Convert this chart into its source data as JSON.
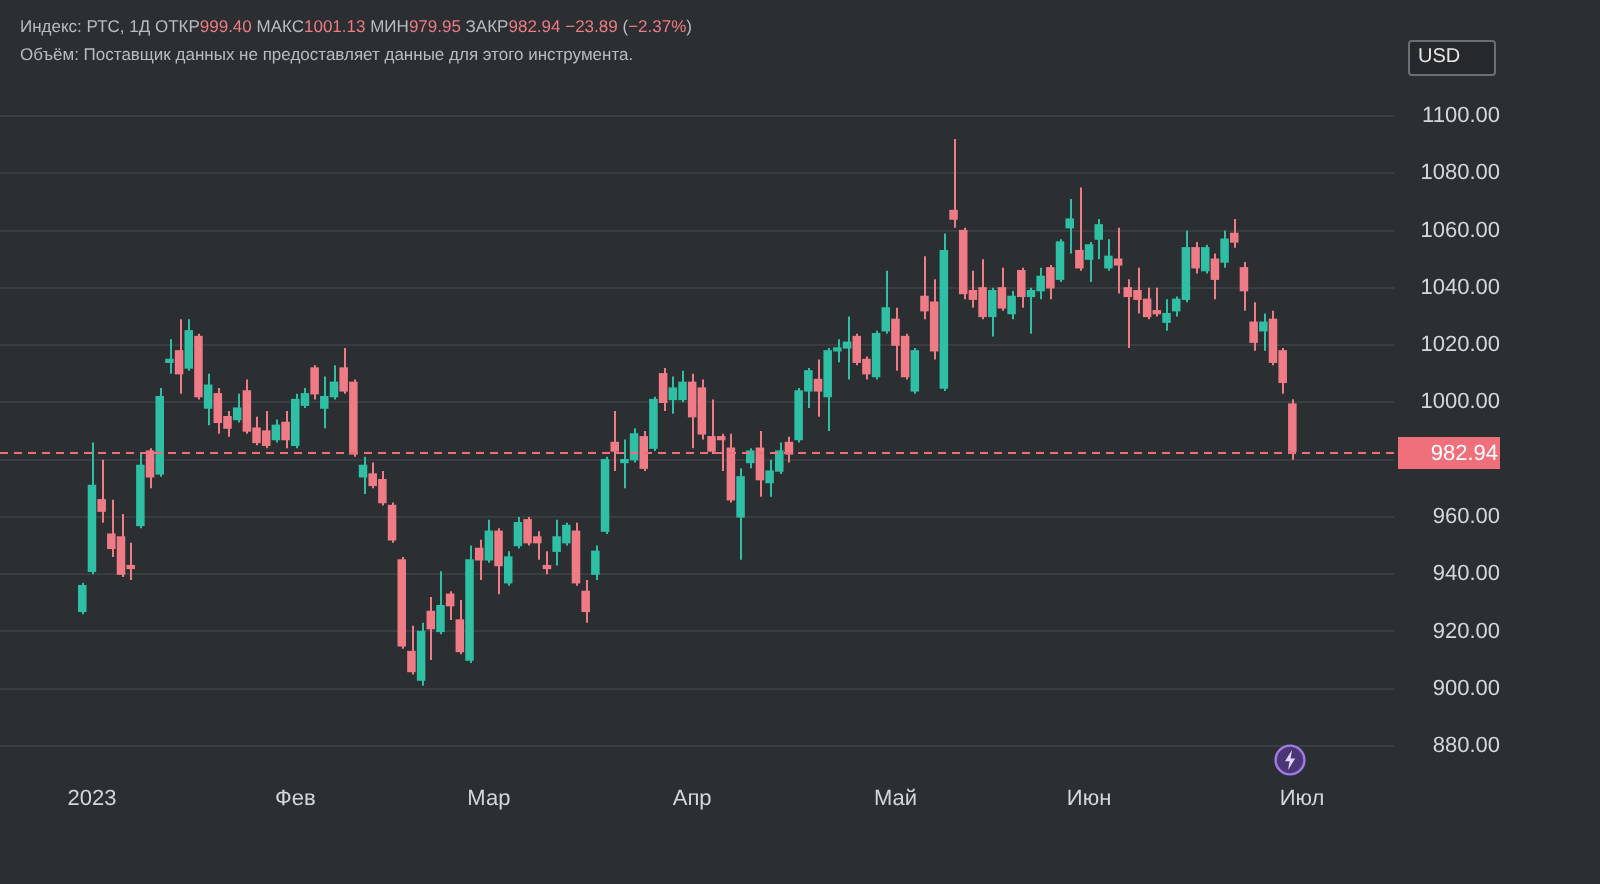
{
  "chart_data": {
    "type": "candlestick",
    "title": "Индекс: РТС, 1Д ОТКР999.40 МАКС1001.13 МИН979.95 ЗАКР982.94 −23.89 (−2.37%)",
    "annotations": [
      "Объём: Поставщик данных не предоставляет данные для этого инструмента.",
      "USD"
    ],
    "categories": [
      null,
      null,
      null,
      null,
      null,
      null,
      null,
      null,
      null,
      "2023",
      null,
      null,
      null,
      null,
      null,
      null,
      null,
      null,
      null,
      null,
      null,
      null,
      null,
      null,
      null,
      null,
      null,
      null,
      null,
      null,
      "Фев",
      null,
      null,
      null,
      null,
      null,
      null,
      null,
      null,
      null,
      null,
      null,
      null,
      null,
      null,
      null,
      null,
      null,
      null,
      null,
      "Мар",
      null,
      null,
      null,
      null,
      null,
      null,
      null,
      null,
      null,
      null,
      null,
      null,
      null,
      null,
      null,
      null,
      null,
      null,
      null,
      null,
      "Апр",
      null,
      null,
      null,
      null,
      null,
      null,
      null,
      null,
      null,
      null,
      null,
      null,
      null,
      null,
      null,
      null,
      null,
      null,
      null,
      null,
      "Май",
      null,
      null,
      null,
      null,
      null,
      null,
      null,
      null,
      null,
      null,
      null,
      null,
      null,
      null,
      null,
      null,
      null,
      null,
      null,
      "Июн",
      null,
      null,
      null,
      null,
      null,
      null,
      null,
      null,
      null,
      null,
      null,
      null,
      null,
      null,
      null,
      null,
      null,
      null,
      null,
      null,
      null,
      "Июл",
      null,
      null,
      null,
      null,
      null,
      null,
      null,
      null,
      null
    ],
    "ohlc": [
      null,
      null,
      null,
      null,
      null,
      null,
      null,
      null,
      [
        927,
        937,
        926,
        936
      ],
      [
        941,
        986,
        940,
        971
      ],
      [
        966,
        980,
        958,
        962
      ],
      [
        954,
        966,
        946,
        949
      ],
      [
        953,
        961,
        939,
        940
      ],
      [
        943,
        951,
        938,
        942
      ],
      [
        957,
        982,
        956,
        978
      ],
      [
        983,
        984,
        970,
        974
      ],
      [
        975,
        1005,
        974,
        1002
      ],
      [
        1014,
        1022,
        1010,
        1015
      ],
      [
        1018,
        1029,
        1003,
        1010
      ],
      [
        1012,
        1029,
        1011,
        1025
      ],
      [
        1023,
        1024,
        1001,
        1002
      ],
      [
        998,
        1010,
        992,
        1006
      ],
      [
        1003,
        1005,
        989,
        993
      ],
      [
        995,
        997,
        988,
        991
      ],
      [
        994,
        1003,
        993,
        998
      ],
      [
        1004,
        1008,
        989,
        990
      ],
      [
        991,
        995,
        985,
        986
      ],
      [
        990,
        997,
        984,
        985
      ],
      [
        987,
        994,
        986,
        992
      ],
      [
        993,
        997,
        984,
        987
      ],
      [
        985,
        1003,
        984,
        1001
      ],
      [
        999,
        1005,
        998,
        1003
      ],
      [
        1012,
        1013,
        1001,
        1003
      ],
      [
        998,
        1009,
        991,
        1002
      ],
      [
        1002,
        1013,
        1001,
        1007
      ],
      [
        1012,
        1019,
        1003,
        1004
      ],
      [
        1007,
        1008,
        981,
        982
      ],
      [
        974,
        981,
        968,
        978
      ],
      [
        975,
        979,
        970,
        971
      ],
      [
        973,
        976,
        964,
        965
      ],
      [
        964,
        965,
        951,
        952
      ],
      [
        945,
        946,
        914,
        915
      ],
      [
        913,
        922,
        905,
        906
      ],
      [
        903,
        923,
        901,
        920
      ],
      [
        927,
        932,
        910,
        921
      ],
      [
        920,
        941,
        919,
        929
      ],
      [
        933,
        934,
        924,
        929
      ],
      [
        924,
        931,
        912,
        913
      ],
      [
        910,
        950,
        909,
        945
      ],
      [
        949,
        952,
        938,
        945
      ],
      [
        945,
        959,
        944,
        955
      ],
      [
        955,
        956,
        933,
        943
      ],
      [
        937,
        948,
        936,
        946
      ],
      [
        950,
        960,
        949,
        958
      ],
      [
        959,
        960,
        950,
        951
      ],
      [
        953,
        955,
        945,
        951
      ],
      [
        943,
        948,
        940,
        942
      ],
      [
        948,
        959,
        943,
        953
      ],
      [
        951,
        958,
        950,
        957
      ],
      [
        955,
        958,
        936,
        937
      ],
      [
        934,
        938,
        923,
        927
      ],
      [
        940,
        950,
        938,
        948
      ],
      [
        955,
        981,
        954,
        980
      ],
      [
        986,
        997,
        976,
        983
      ],
      [
        979,
        987,
        970,
        980
      ],
      [
        980,
        991,
        979,
        989
      ],
      [
        988,
        990,
        976,
        977
      ],
      [
        984,
        1002,
        983,
        1001
      ],
      [
        1010,
        1012,
        997,
        1000
      ],
      [
        1001,
        1009,
        996,
        1005
      ],
      [
        1001,
        1011,
        1000,
        1007
      ],
      [
        1007,
        1010,
        984,
        995
      ],
      [
        1005,
        1008,
        987,
        989
      ],
      [
        988,
        1001,
        982,
        983
      ],
      [
        988,
        989,
        976,
        987
      ],
      [
        984,
        989,
        965,
        966
      ],
      [
        960,
        977,
        945,
        974
      ],
      [
        979,
        984,
        977,
        983
      ],
      [
        984,
        990,
        967,
        973
      ],
      [
        972,
        980,
        967,
        976
      ],
      [
        976,
        986,
        975,
        983
      ],
      [
        986,
        988,
        979,
        982
      ],
      [
        987,
        1005,
        986,
        1004
      ],
      [
        1004,
        1012,
        998,
        1011
      ],
      [
        1008,
        1015,
        995,
        1004
      ],
      [
        1002,
        1019,
        990,
        1018
      ],
      [
        1018,
        1022,
        1014,
        1019
      ],
      [
        1019,
        1030,
        1008,
        1021
      ],
      [
        1023,
        1024,
        1013,
        1014
      ],
      [
        1015,
        1016,
        1008,
        1010
      ],
      [
        1009,
        1025,
        1008,
        1024
      ],
      [
        1025,
        1046,
        1024,
        1033
      ],
      [
        1029,
        1033,
        1011,
        1020
      ],
      [
        1023,
        1024,
        1008,
        1009
      ],
      [
        1004,
        1019,
        1003,
        1018
      ],
      [
        1037,
        1051,
        1029,
        1032
      ],
      [
        1035,
        1043,
        1015,
        1018
      ],
      [
        1005,
        1059,
        1004,
        1053
      ],
      [
        1067,
        1092,
        1061,
        1064
      ],
      [
        1060,
        1061,
        1036,
        1038
      ],
      [
        1039,
        1046,
        1033,
        1036
      ],
      [
        1040,
        1050,
        1029,
        1030
      ],
      [
        1030,
        1040,
        1023,
        1039
      ],
      [
        1040,
        1047,
        1032,
        1033
      ],
      [
        1031,
        1039,
        1029,
        1037
      ],
      [
        1046,
        1047,
        1033,
        1037
      ],
      [
        1037,
        1040,
        1024,
        1039
      ],
      [
        1039,
        1047,
        1036,
        1044
      ],
      [
        1047,
        1048,
        1036,
        1040
      ],
      [
        1043,
        1057,
        1042,
        1056
      ],
      [
        1061,
        1071,
        1052,
        1064
      ],
      [
        1053,
        1075,
        1046,
        1047
      ],
      [
        1050,
        1056,
        1042,
        1055
      ],
      [
        1057,
        1064,
        1050,
        1062
      ],
      [
        1047,
        1057,
        1046,
        1051
      ],
      [
        1050,
        1061,
        1038,
        1048
      ],
      [
        1040,
        1043,
        1019,
        1037
      ],
      [
        1039,
        1047,
        1031,
        1036
      ],
      [
        1036,
        1040,
        1029,
        1030
      ],
      [
        1032,
        1040,
        1030,
        1031
      ],
      [
        1028,
        1036,
        1025,
        1031
      ],
      [
        1032,
        1037,
        1030,
        1036
      ],
      [
        1036,
        1060,
        1035,
        1054
      ],
      [
        1054,
        1056,
        1045,
        1047
      ],
      [
        1046,
        1055,
        1045,
        1054
      ],
      [
        1050,
        1052,
        1036,
        1043
      ],
      [
        1049,
        1060,
        1047,
        1057
      ],
      [
        1059,
        1064,
        1054,
        1056
      ],
      [
        1047,
        1049,
        1032,
        1039
      ],
      [
        1028,
        1035,
        1018,
        1021
      ],
      [
        1025,
        1031,
        1018,
        1028
      ],
      [
        1029,
        1032,
        1013,
        1014
      ],
      [
        1018,
        1019,
        1003,
        1007
      ],
      [
        999.4,
        1001.13,
        979.95,
        982.94
      ],
      null,
      null,
      null,
      null,
      null,
      null,
      null,
      null,
      null,
      null
    ],
    "colors": [
      null,
      null,
      null,
      null,
      null,
      null,
      null,
      null,
      "#2ebfa5",
      "#2ebfa5",
      "#ef7b86",
      "#ef7b86",
      "#ef7b86",
      "#ef7b86",
      "#2ebfa5",
      "#ef7b86",
      "#2ebfa5",
      "#2ebfa5",
      "#ef7b86",
      "#2ebfa5",
      "#ef7b86",
      "#2ebfa5",
      "#ef7b86",
      "#ef7b86",
      "#2ebfa5",
      "#ef7b86",
      "#ef7b86",
      "#ef7b86",
      "#2ebfa5",
      "#ef7b86",
      "#2ebfa5",
      "#2ebfa5",
      "#ef7b86",
      "#2ebfa5",
      "#2ebfa5",
      "#ef7b86",
      "#ef7b86",
      "#2ebfa5",
      "#ef7b86",
      "#ef7b86",
      "#ef7b86",
      "#ef7b86",
      "#ef7b86",
      "#2ebfa5",
      "#ef7b86",
      "#2ebfa5",
      "#ef7b86",
      "#ef7b86",
      "#2ebfa5",
      "#ef7b86",
      "#2ebfa5",
      "#ef7b86",
      "#2ebfa5",
      "#2ebfa5",
      "#ef7b86",
      "#ef7b86",
      "#ef7b86",
      "#2ebfa5",
      "#2ebfa5",
      "#ef7b86",
      "#ef7b86",
      "#2ebfa5",
      "#2ebfa5",
      "#ef7b86",
      "#2ebfa5",
      "#2ebfa5",
      "#ef7b86",
      "#2ebfa5",
      "#ef7b86",
      "#2ebfa5",
      "#2ebfa5",
      "#ef7b86",
      "#ef7b86",
      "#ef7b86",
      "#ef7b86",
      "#ef7b86",
      "#2ebfa5",
      "#2ebfa5",
      "#ef7b86",
      "#2ebfa5",
      "#2ebfa5",
      "#ef7b86",
      "#2ebfa5",
      "#2ebfa5",
      "#ef7b86",
      "#2ebfa5",
      "#2ebfa5",
      "#2ebfa5",
      "#ef7b86",
      "#ef7b86",
      "#2ebfa5",
      "#2ebfa5",
      "#ef7b86",
      "#ef7b86",
      "#2ebfa5",
      "#ef7b86",
      "#ef7b86",
      "#2ebfa5",
      "#ef7b86",
      "#ef7b86",
      "#ef7b86",
      "#ef7b86",
      "#2ebfa5",
      "#ef7b86",
      "#2ebfa5",
      "#ef7b86",
      "#2ebfa5",
      "#2ebfa5",
      "#ef7b86",
      "#2ebfa5",
      "#2ebfa5",
      "#ef7b86",
      "#2ebfa5",
      "#2ebfa5",
      "#2ebfa5",
      "#ef7b86",
      "#ef7b86",
      "#ef7b86",
      "#ef7b86",
      "#ef7b86",
      "#2ebfa5",
      "#2ebfa5",
      "#2ebfa5",
      "#ef7b86",
      "#2ebfa5",
      "#ef7b86",
      "#2ebfa5",
      "#ef7b86",
      "#ef7b86",
      "#ef7b86",
      "#2ebfa5",
      "#ef7b86",
      "#ef7b86",
      "#ef7b86",
      null,
      null,
      null,
      null,
      null,
      null,
      null,
      null,
      null,
      null
    ],
    "ylim": [
      880,
      1100
    ],
    "yticks": [
      {
        "value": 880,
        "label": "880.00"
      },
      {
        "value": 900,
        "label": "900.00"
      },
      {
        "value": 920,
        "label": "920.00"
      },
      {
        "value": 940,
        "label": "940.00"
      },
      {
        "value": 960,
        "label": "960.00"
      },
      {
        "value": 980,
        "label": null
      },
      {
        "value": 1000,
        "label": "1000.00"
      },
      {
        "value": 1020,
        "label": "1020.00"
      },
      {
        "value": 1040,
        "label": "1040.00"
      },
      {
        "value": 1060,
        "label": "1060.00"
      },
      {
        "value": 1080,
        "label": "1080.00"
      },
      {
        "value": 1100,
        "label": "1100.00"
      }
    ],
    "ref_lines": [
      {
        "axis": "y",
        "value": 982.94,
        "label": "982.94",
        "color": "#ef6f7b",
        "line_style": "dashed"
      }
    ],
    "grid": "y"
  }
}
